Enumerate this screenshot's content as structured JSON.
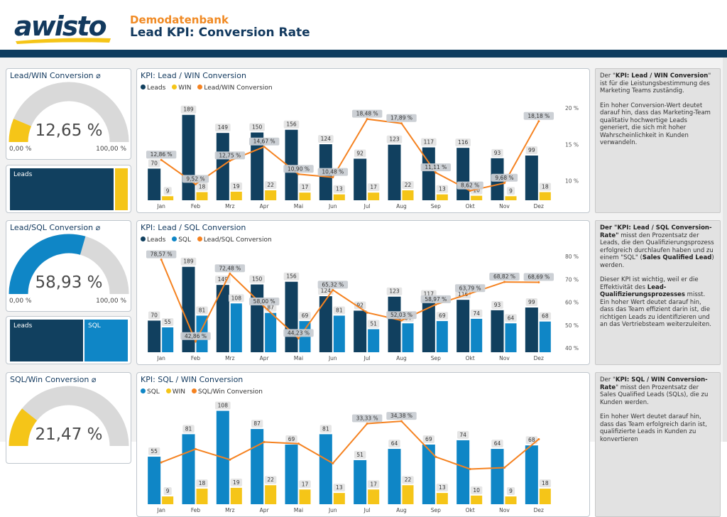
{
  "header": {
    "logo_text": "awisto",
    "subtitle": "Demodatenbank",
    "title": "Lead KPI: Conversion Rate"
  },
  "colors": {
    "navy": "#11405F",
    "yellow": "#F5C518",
    "orange": "#F58220",
    "blue": "#0F86C6",
    "gray": "#D9D9D9",
    "band": "#0E3C5E"
  },
  "rows": [
    {
      "gauge": {
        "title": "Lead/WIN Conversion",
        "value_text": "12,65 %",
        "value": 0.1265,
        "min_label": "0,00 %",
        "max_label": "100,00 %",
        "color": "#F5C518"
      },
      "tree": [
        {
          "label": "Leads",
          "color": "#11405F",
          "share": 0.924
        },
        {
          "label": "",
          "color": "#F5C518",
          "share": 0.076
        }
      ],
      "chart_title": "KPI: Lead / WIN Conversion",
      "legend": [
        {
          "label": "Leads",
          "color": "#11405F"
        },
        {
          "label": "WIN",
          "color": "#F5C518"
        },
        {
          "label": "Lead/WIN Conversion",
          "color": "#F58220"
        }
      ],
      "description": [
        "Der \"<b>KPI: Lead / WIN Conversion</b>\" ist für die Leistungsbestimmung des Marketing Teams zuständig.",
        "Ein hoher Conversion-Wert deutet darauf hin, dass das Marketing-Team qualitativ hochwertige Leads generiert, die sich mit hoher Wahrscheinlichkeit in Kunden verwandeln."
      ]
    },
    {
      "gauge": {
        "title": "Lead/SQL Conversion",
        "value_text": "58,93 %",
        "value": 0.5893,
        "min_label": "0,00 %",
        "max_label": "100,00 %",
        "color": "#0F86C6"
      },
      "tree": [
        {
          "label": "Leads",
          "color": "#11405F",
          "share": 0.629
        },
        {
          "label": "SQL",
          "color": "#0F86C6",
          "share": 0.371
        }
      ],
      "chart_title": "KPI: Lead / SQL Conversion",
      "legend": [
        {
          "label": "Leads",
          "color": "#11405F"
        },
        {
          "label": "SQL",
          "color": "#0F86C6"
        },
        {
          "label": "Lead/SQL Conversion",
          "color": "#F58220"
        }
      ],
      "description": [
        "<b>Der \"KPI: Lead / SQL Conversion-Rate\"</b> misst den Prozentsatz der Leads, die den Qualifizierungsprozess erfolgreich durchlaufen haben und zu einem \"SQL\" (<b>Sales Qualified Lead</b>) werden.",
        "Dieser KPI ist wichtig, weil er die Effektivität des <b>Lead-Qualifizierungsprozesses</b> misst. Ein hoher Wert deutet darauf hin, dass das Team effizient darin ist, die richtigen Leads zu identifizieren und an das Vertriebsteam weiterzuleiten."
      ]
    },
    {
      "gauge": {
        "title": "SQL/Win Conversion",
        "value_text": "21,47 %",
        "value": 0.2147,
        "min_label": "",
        "max_label": "",
        "color": "#F5C518"
      },
      "chart_title": "KPI: SQL / WIN Conversion",
      "legend": [
        {
          "label": "SQL",
          "color": "#0F86C6"
        },
        {
          "label": "WIN",
          "color": "#F5C518"
        },
        {
          "label": "SQL/Win Conversion",
          "color": "#F58220"
        }
      ],
      "description": [
        "Der \"<b>KPI: SQL / WIN Conversion-Rate</b>\" misst den Prozentsatz der Sales Qualified Leads (SQLs), die zu Kunden werden.",
        "Ein hoher Wert deutet darauf hin, dass das Team erfolgreich darin ist, qualifizierte Leads in Kunden zu konvertieren"
      ]
    }
  ],
  "chart_data": [
    {
      "type": "bar",
      "title": "KPI: Lead / WIN Conversion",
      "categories": [
        "Jan",
        "Feb",
        "Mrz",
        "Apr",
        "Mai",
        "Jun",
        "Jul",
        "Aug",
        "Sep",
        "Okt",
        "Nov",
        "Dez"
      ],
      "series": [
        {
          "name": "Leads",
          "color": "#11405F",
          "values": [
            70,
            189,
            149,
            150,
            156,
            124,
            92,
            123,
            117,
            116,
            93,
            99
          ]
        },
        {
          "name": "WIN",
          "color": "#F5C518",
          "values": [
            9,
            18,
            19,
            22,
            17,
            13,
            17,
            22,
            13,
            10,
            9,
            18
          ]
        }
      ],
      "line": {
        "name": "Lead/WIN Conversion",
        "color": "#F58220",
        "values": [
          12.86,
          9.52,
          12.75,
          14.67,
          10.9,
          10.48,
          18.48,
          17.89,
          11.11,
          8.62,
          9.68,
          18.18
        ],
        "labels": [
          "12,86 %",
          "9,52 %",
          "12,75 %",
          "14,67 %",
          "10,90 %",
          "10,48 %",
          "18,48 %",
          "17,89 %",
          "11,11 %",
          "8,62 %",
          "9,68 %",
          "18,18 %"
        ]
      },
      "ymax": 220,
      "y2ticks": [
        {
          "v": 10,
          "label": "10 %"
        },
        {
          "v": 15,
          "label": "15 %"
        },
        {
          "v": 20,
          "label": "20 %"
        }
      ],
      "y2range": [
        7.9,
        20.5
      ]
    },
    {
      "type": "bar",
      "title": "KPI: Lead / SQL Conversion",
      "categories": [
        "Jan",
        "Feb",
        "Mrz",
        "Apr",
        "Mai",
        "Jun",
        "Jul",
        "Aug",
        "Sep",
        "Okt",
        "Nov",
        "Dez"
      ],
      "series": [
        {
          "name": "Leads",
          "color": "#11405F",
          "values": [
            70,
            189,
            149,
            150,
            156,
            124,
            92,
            123,
            117,
            116,
            93,
            99
          ]
        },
        {
          "name": "SQL",
          "color": "#0F86C6",
          "values": [
            55,
            81,
            108,
            87,
            69,
            81,
            51,
            64,
            69,
            74,
            64,
            68
          ]
        }
      ],
      "line": {
        "name": "Lead/SQL Conversion",
        "color": "#F58220",
        "values": [
          78.57,
          42.86,
          72.48,
          58.0,
          44.23,
          65.32,
          55.43,
          52.03,
          58.97,
          63.79,
          68.82,
          68.69
        ],
        "labels": [
          "78,57 %",
          "42,86 %",
          "72,48 %",
          "58,00 %",
          "44,23 %",
          "65,32 %",
          "",
          "52,03 %",
          "58,97 %",
          "63,79 %",
          "68,82 %",
          "68,69 %"
        ]
      },
      "ymax": 220,
      "y2ticks": [
        {
          "v": 40,
          "label": "40 %"
        },
        {
          "v": 50,
          "label": "50 %"
        },
        {
          "v": 60,
          "label": "60 %"
        },
        {
          "v": 70,
          "label": "70 %"
        },
        {
          "v": 80,
          "label": "80 %"
        }
      ],
      "y2range": [
        40,
        80
      ]
    },
    {
      "type": "bar",
      "title": "KPI: SQL / WIN Conversion",
      "categories": [
        "Jan",
        "Feb",
        "Mrz",
        "Apr",
        "Mai",
        "Jun",
        "Jul",
        "Aug",
        "Sep",
        "Okt",
        "Nov",
        "Dez"
      ],
      "series": [
        {
          "name": "SQL",
          "color": "#0F86C6",
          "values": [
            55,
            81,
            108,
            87,
            69,
            81,
            51,
            64,
            69,
            74,
            64,
            68
          ]
        },
        {
          "name": "WIN",
          "color": "#F5C518",
          "values": [
            9,
            18,
            19,
            22,
            17,
            13,
            17,
            22,
            13,
            10,
            9,
            18
          ]
        }
      ],
      "line": {
        "name": "SQL/Win Conversion",
        "color": "#F58220",
        "values": [
          16.4,
          22.2,
          17.6,
          25.3,
          24.6,
          16.0,
          33.33,
          34.38,
          18.8,
          13.5,
          14.1,
          26.5
        ],
        "labels": [
          "",
          "",
          "",
          "",
          "",
          "",
          "33,33 %",
          "34,38 %",
          "",
          "",
          "",
          ""
        ]
      },
      "ymax": 115,
      "y2range": [
        0,
        40
      ]
    }
  ]
}
